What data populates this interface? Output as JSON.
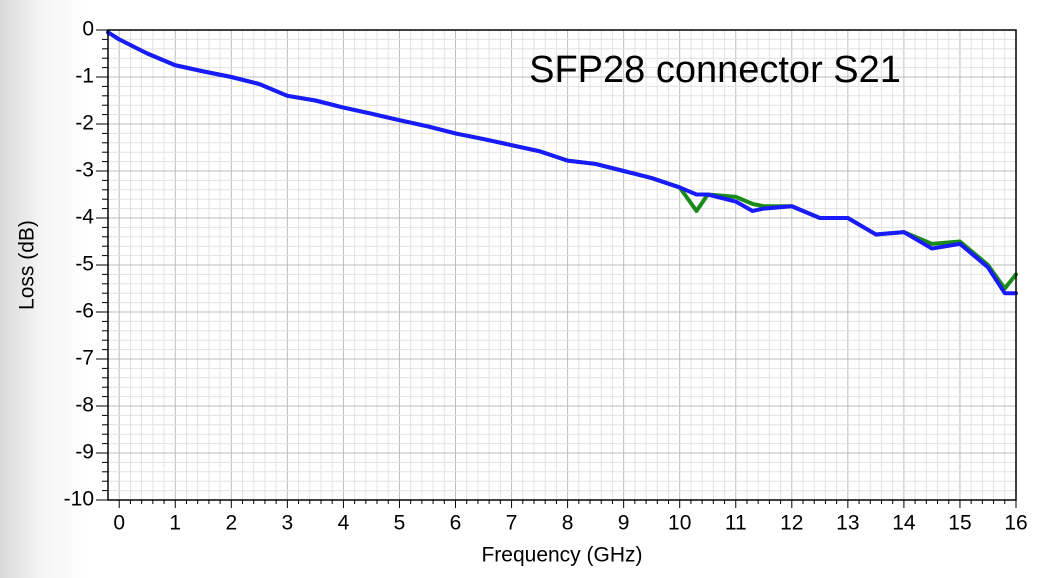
{
  "chart_data": {
    "type": "line",
    "annotation": "SFP28 connector S21",
    "x_label": "Frequency (GHz)",
    "y_label": "Loss (dB)",
    "xlim": [
      -0.2,
      16
    ],
    "ylim": [
      -10,
      0
    ],
    "xticks": [
      0,
      1,
      2,
      3,
      4,
      5,
      6,
      7,
      8,
      9,
      10,
      11,
      12,
      13,
      14,
      15,
      16
    ],
    "yticks": [
      0,
      -1,
      -2,
      -3,
      -4,
      -5,
      -6,
      -7,
      -8,
      -9,
      -10
    ],
    "grid": true,
    "minor_grid_divisions": 5,
    "x": [
      -0.2,
      0,
      0.5,
      1,
      1.5,
      2,
      2.5,
      3,
      3.5,
      4,
      4.5,
      5,
      5.5,
      6,
      6.5,
      7,
      7.5,
      8,
      8.5,
      9,
      9.5,
      10,
      10.3,
      10.5,
      11,
      11.3,
      11.5,
      12,
      12.5,
      13,
      13.5,
      14,
      14.5,
      15,
      15.5,
      15.8,
      16
    ],
    "series": [
      {
        "color": "#1a8a1a",
        "values": [
          -0.05,
          -0.2,
          -0.5,
          -0.75,
          -0.88,
          -1.0,
          -1.15,
          -1.4,
          -1.5,
          -1.65,
          -1.78,
          -1.92,
          -2.05,
          -2.2,
          -2.32,
          -2.45,
          -2.58,
          -2.78,
          -2.85,
          -3.0,
          -3.15,
          -3.35,
          -3.85,
          -3.5,
          -3.55,
          -3.7,
          -3.75,
          -3.75,
          -4.0,
          -4.0,
          -4.35,
          -4.3,
          -4.55,
          -4.5,
          -5.0,
          -5.5,
          -5.2
        ]
      },
      {
        "color": "#1a1aff",
        "values": [
          -0.05,
          -0.2,
          -0.5,
          -0.75,
          -0.88,
          -1.0,
          -1.15,
          -1.4,
          -1.5,
          -1.65,
          -1.78,
          -1.92,
          -2.05,
          -2.2,
          -2.32,
          -2.45,
          -2.58,
          -2.78,
          -2.85,
          -3.0,
          -3.15,
          -3.35,
          -3.5,
          -3.5,
          -3.65,
          -3.85,
          -3.8,
          -3.75,
          -4.0,
          -4.0,
          -4.35,
          -4.3,
          -4.65,
          -4.55,
          -5.05,
          -5.6,
          -5.6
        ]
      }
    ]
  }
}
